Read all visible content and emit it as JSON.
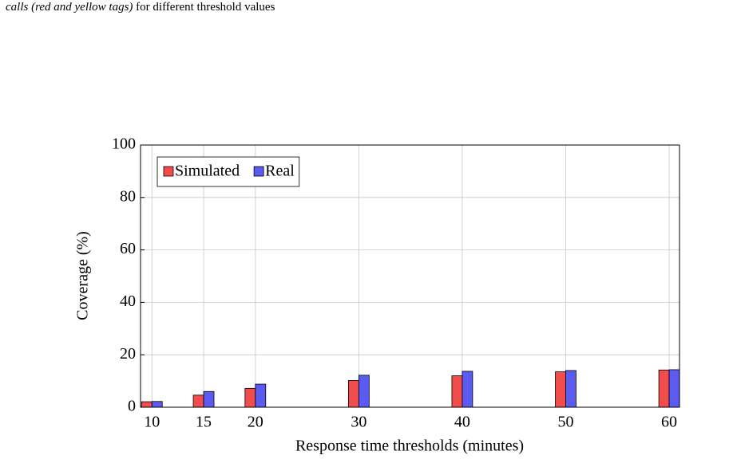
{
  "caption": {
    "emphasis": "calls (red and yellow tags)",
    "text": "for different threshold values"
  },
  "chart_data": {
    "type": "bar",
    "x": [
      10,
      15,
      20,
      30,
      40,
      50,
      60
    ],
    "series": [
      {
        "name": "Simulated",
        "color": "#f24d4d",
        "values": [
          2.1,
          4.6,
          7.2,
          10.2,
          12,
          13.5,
          14.2
        ]
      },
      {
        "name": "Real",
        "color": "#5b5bf2",
        "values": [
          2.2,
          6,
          8.8,
          12.2,
          13.7,
          14,
          14.3
        ]
      }
    ],
    "xlabel": "Response time thresholds (minutes)",
    "ylabel": "Coverage (%)",
    "xlim": [
      8.9,
      61
    ],
    "xticks": [
      10,
      15,
      20,
      30,
      40,
      50,
      60
    ],
    "ylim": [
      0,
      100
    ],
    "yticks": [
      0,
      20,
      40,
      60,
      80,
      100
    ],
    "grid": true,
    "legend": "top-left"
  }
}
